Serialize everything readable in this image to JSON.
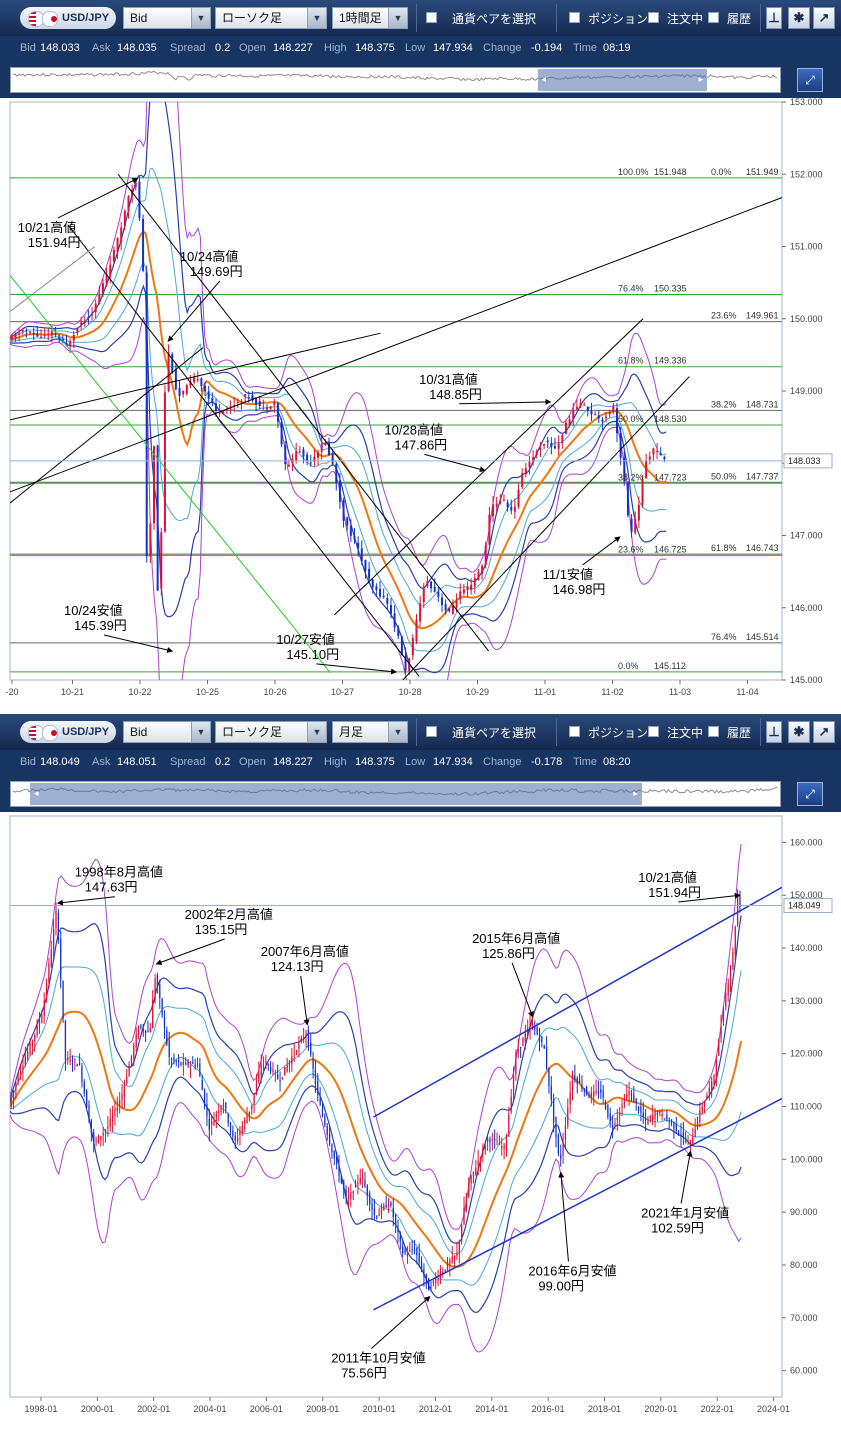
{
  "panels": [
    {
      "toolbar": {
        "pair": "USD/JPY",
        "price_type": "Bid",
        "chart_style": "ローソク足",
        "timeframe": "1時間足",
        "pair_select_label": "通貨ペアを選択",
        "positions_label": "ポジション",
        "orders_label": "注文中",
        "history_label": "履歴",
        "pin_icon": "pin-icon",
        "gear_icon": "gear-icon",
        "popout_icon": "popout-icon"
      },
      "quote": {
        "bid_label": "Bid",
        "bid": "148.033",
        "ask_label": "Ask",
        "ask": "148.035",
        "spread_label": "Spread",
        "spread": "0.2",
        "open_label": "Open",
        "open": "148.227",
        "high_label": "High",
        "high": "148.375",
        "low_label": "Low",
        "low": "147.934",
        "change_label": "Change",
        "change": "-0.194",
        "time_label": "Time",
        "time": "08:19"
      },
      "navigator": {
        "window_start": 0.685,
        "window_end": 0.905
      }
    },
    {
      "toolbar": {
        "pair": "USD/JPY",
        "price_type": "Bid",
        "chart_style": "ローソク足",
        "timeframe": "月足",
        "pair_select_label": "通貨ペアを選択",
        "positions_label": "ポジション",
        "orders_label": "注文中",
        "history_label": "履歴",
        "pin_icon": "pin-icon",
        "gear_icon": "gear-icon",
        "popout_icon": "popout-icon"
      },
      "quote": {
        "bid_label": "Bid",
        "bid": "148.049",
        "ask_label": "Ask",
        "ask": "148.051",
        "spread_label": "Spread",
        "spread": "0.2",
        "open_label": "Open",
        "open": "148.227",
        "high_label": "High",
        "high": "148.375",
        "low_label": "Low",
        "low": "147.934",
        "change_label": "Change",
        "change": "-0.178",
        "time_label": "Time",
        "time": "08:20"
      },
      "navigator": {
        "window_start": 0.025,
        "window_end": 0.82
      }
    }
  ],
  "chart_data": [
    {
      "type": "candlestick",
      "pair": "USD/JPY",
      "timeframe": "1時間足",
      "ylim": [
        145.0,
        153.0
      ],
      "y_ticks": [
        "145.000",
        "146.000",
        "147.000",
        "148.000",
        "149.000",
        "150.000",
        "151.000",
        "152.000",
        "153.000"
      ],
      "x_ticks": [
        "-20",
        "10-21",
        "10-22",
        "10-25",
        "10-26",
        "10-27",
        "10-28",
        "10-29",
        "11-01",
        "11-02",
        "11-03",
        "11-04"
      ],
      "current_price": "148.033",
      "series_path": [
        [
          0.0,
          149.7
        ],
        [
          0.02,
          149.85
        ],
        [
          0.04,
          149.75
        ],
        [
          0.06,
          149.8
        ],
        [
          0.075,
          149.6
        ],
        [
          0.09,
          149.9
        ],
        [
          0.11,
          150.1
        ],
        [
          0.13,
          150.7
        ],
        [
          0.145,
          151.2
        ],
        [
          0.155,
          151.7
        ],
        [
          0.165,
          151.9
        ],
        [
          0.17,
          151.4
        ],
        [
          0.175,
          150.6
        ],
        [
          0.18,
          146.2
        ],
        [
          0.19,
          148.5
        ],
        [
          0.195,
          145.39
        ],
        [
          0.2,
          147.9
        ],
        [
          0.205,
          149.69
        ],
        [
          0.21,
          149.4
        ],
        [
          0.22,
          148.9
        ],
        [
          0.235,
          149.1
        ],
        [
          0.245,
          149.2
        ],
        [
          0.255,
          149.0
        ],
        [
          0.27,
          148.7
        ],
        [
          0.29,
          148.8
        ],
        [
          0.31,
          148.95
        ],
        [
          0.33,
          148.75
        ],
        [
          0.345,
          148.85
        ],
        [
          0.36,
          147.9
        ],
        [
          0.375,
          148.2
        ],
        [
          0.39,
          148.0
        ],
        [
          0.41,
          148.3
        ],
        [
          0.42,
          148.0
        ],
        [
          0.435,
          147.2
        ],
        [
          0.45,
          146.9
        ],
        [
          0.47,
          146.3
        ],
        [
          0.49,
          146.1
        ],
        [
          0.505,
          145.6
        ],
        [
          0.515,
          145.1
        ],
        [
          0.525,
          145.6
        ],
        [
          0.54,
          146.4
        ],
        [
          0.555,
          146.2
        ],
        [
          0.57,
          145.9
        ],
        [
          0.585,
          146.2
        ],
        [
          0.6,
          146.3
        ],
        [
          0.615,
          146.6
        ],
        [
          0.625,
          147.4
        ],
        [
          0.64,
          147.5
        ],
        [
          0.655,
          147.3
        ],
        [
          0.665,
          147.86
        ],
        [
          0.68,
          148.1
        ],
        [
          0.695,
          148.3
        ],
        [
          0.71,
          148.2
        ],
        [
          0.725,
          148.6
        ],
        [
          0.74,
          148.85
        ],
        [
          0.755,
          148.7
        ],
        [
          0.77,
          148.6
        ],
        [
          0.785,
          148.8
        ],
        [
          0.79,
          148.3
        ],
        [
          0.8,
          147.6
        ],
        [
          0.805,
          146.98
        ],
        [
          0.815,
          147.3
        ],
        [
          0.825,
          148.0
        ],
        [
          0.835,
          148.2
        ],
        [
          0.845,
          148.1
        ],
        [
          0.85,
          148.033
        ]
      ],
      "lines": [
        {
          "color": "#000000",
          "width": 1,
          "from": [
            -0.05,
            147.4
          ],
          "to": [
            1.03,
            151.8
          ]
        },
        {
          "color": "#000000",
          "width": 1,
          "from": [
            0.0,
            148.6
          ],
          "to": [
            0.48,
            149.8
          ]
        },
        {
          "color": "#000000",
          "width": 1,
          "from": [
            0.14,
            152.0
          ],
          "to": [
            0.62,
            145.4
          ]
        },
        {
          "color": "#000000",
          "width": 1,
          "from": [
            0.075,
            151.3
          ],
          "to": [
            0.53,
            145.05
          ]
        },
        {
          "color": "#000000",
          "width": 1,
          "from": [
            0.0,
            147.45
          ],
          "to": [
            0.25,
            149.6
          ]
        },
        {
          "color": "#000000",
          "width": 1,
          "from": [
            0.42,
            145.9
          ],
          "to": [
            0.82,
            150.0
          ]
        },
        {
          "color": "#000000",
          "width": 1,
          "from": [
            0.5,
            144.9
          ],
          "to": [
            0.88,
            149.2
          ]
        },
        {
          "color": "#888888",
          "width": 1,
          "from": [
            0.0,
            150.1
          ],
          "to": [
            0.11,
            151.0
          ]
        },
        {
          "color": "#22cc22",
          "width": 1,
          "from": [
            0.0,
            150.6
          ],
          "to": [
            0.415,
            145.1
          ]
        }
      ],
      "fib_levels": [
        {
          "value": 151.949,
          "color": "#3ba33b",
          "ratio_left": "100.0%",
          "label_left": "151.948",
          "ratio_right": "0.0%",
          "label_right": "151.949"
        },
        {
          "value": 150.335,
          "color": "#3ba33b",
          "ratio_left": "76.4%",
          "label_left": "150.335"
        },
        {
          "value": 149.961,
          "color": "#666666",
          "ratio_right": "23.6%",
          "label_right": "149.961"
        },
        {
          "value": 149.336,
          "color": "#3ba33b",
          "ratio_left": "61.8%",
          "label_left": "149.336"
        },
        {
          "value": 148.731,
          "color": "#666666",
          "ratio_right": "38.2%",
          "label_right": "148.731"
        },
        {
          "value": 148.53,
          "color": "#3ba33b",
          "ratio_left": "50.0%",
          "label_left": "148.530"
        },
        {
          "value": 147.737,
          "color": "#666666",
          "ratio_right": "50.0%",
          "label_right": "147.737"
        },
        {
          "value": 147.723,
          "color": "#3ba33b",
          "ratio_left": "38.2%",
          "label_left": "147.723"
        },
        {
          "value": 146.743,
          "color": "#666666",
          "ratio_right": "61.8%",
          "label_right": "146.743"
        },
        {
          "value": 146.725,
          "color": "#3ba33b",
          "ratio_left": "23.6%",
          "label_left": "146.725"
        },
        {
          "value": 145.514,
          "color": "#666666",
          "ratio_right": "76.4%",
          "label_right": "145.514"
        },
        {
          "value": 145.112,
          "color": "#3ba33b",
          "ratio_left": "0.0%",
          "label_left": "145.112"
        }
      ],
      "annotations": [
        {
          "line1": "10/21高値",
          "line2": "151.94円",
          "x": 0.165,
          "y": 151.94,
          "tx": 0.01,
          "ty": 151.2,
          "anchor": "start"
        },
        {
          "line1": "10/24高値",
          "line2": "149.69円",
          "x": 0.205,
          "y": 149.69,
          "tx": 0.22,
          "ty": 150.8,
          "anchor": "start"
        },
        {
          "line1": "10/31高値",
          "line2": "148.85円",
          "x": 0.7,
          "y": 148.85,
          "tx": 0.53,
          "ty": 149.1,
          "anchor": "start"
        },
        {
          "line1": "10/28高値",
          "line2": "147.86円",
          "x": 0.615,
          "y": 147.9,
          "tx": 0.485,
          "ty": 148.4,
          "anchor": "start"
        },
        {
          "line1": "11/1安値",
          "line2": "146.98円",
          "x": 0.79,
          "y": 146.98,
          "tx": 0.69,
          "ty": 146.4,
          "anchor": "start"
        },
        {
          "line1": "10/24安値",
          "line2": "145.39円",
          "x": 0.21,
          "y": 145.4,
          "tx": 0.07,
          "ty": 145.9,
          "anchor": "start"
        },
        {
          "line1": "10/27安値",
          "line2": "145.10円",
          "x": 0.5,
          "y": 145.11,
          "tx": 0.345,
          "ty": 145.5,
          "anchor": "start"
        }
      ]
    },
    {
      "type": "candlestick",
      "pair": "USD/JPY",
      "timeframe": "月足",
      "ylim": [
        55.0,
        165.0
      ],
      "y_ticks": [
        "60.000",
        "70.000",
        "80.000",
        "90.000",
        "100.000",
        "110.000",
        "120.000",
        "130.000",
        "140.000",
        "150.000",
        "160.000"
      ],
      "x_ticks": [
        "1998-01",
        "2000-01",
        "2002-01",
        "2004-01",
        "2006-01",
        "2008-01",
        "2010-01",
        "2012-01",
        "2014-01",
        "2016-01",
        "2018-01",
        "2020-01",
        "2022-01",
        "2024-01"
      ],
      "x_range": [
        1996.9,
        2024.3
      ],
      "current_price": "148.049",
      "series_path": [
        [
          1996.9,
          110
        ],
        [
          1997.3,
          117
        ],
        [
          1997.7,
          122
        ],
        [
          1998.1,
          128
        ],
        [
          1998.6,
          147.63
        ],
        [
          1998.9,
          119
        ],
        [
          1999.4,
          118
        ],
        [
          1999.9,
          103
        ],
        [
          2000.4,
          106
        ],
        [
          2000.9,
          112
        ],
        [
          2001.5,
          125
        ],
        [
          2001.9,
          124
        ],
        [
          2002.1,
          135.15
        ],
        [
          2002.6,
          119
        ],
        [
          2003.0,
          118
        ],
        [
          2003.6,
          118
        ],
        [
          2004.0,
          106
        ],
        [
          2004.5,
          111
        ],
        [
          2004.9,
          103
        ],
        [
          2005.5,
          110
        ],
        [
          2005.9,
          119
        ],
        [
          2006.5,
          115
        ],
        [
          2006.9,
          119
        ],
        [
          2007.45,
          124.13
        ],
        [
          2007.9,
          111
        ],
        [
          2008.3,
          103
        ],
        [
          2008.9,
          92
        ],
        [
          2009.4,
          97
        ],
        [
          2009.9,
          89
        ],
        [
          2010.4,
          92
        ],
        [
          2010.9,
          82
        ],
        [
          2011.3,
          83
        ],
        [
          2011.8,
          75.56
        ],
        [
          2012.3,
          79
        ],
        [
          2012.8,
          82
        ],
        [
          2013.2,
          95
        ],
        [
          2013.5,
          99
        ],
        [
          2013.9,
          104
        ],
        [
          2014.5,
          102
        ],
        [
          2014.9,
          120
        ],
        [
          2015.45,
          125.86
        ],
        [
          2015.9,
          121
        ],
        [
          2016.45,
          99.0
        ],
        [
          2016.9,
          116
        ],
        [
          2017.5,
          112
        ],
        [
          2017.9,
          113
        ],
        [
          2018.3,
          106
        ],
        [
          2018.9,
          113
        ],
        [
          2019.5,
          107
        ],
        [
          2019.9,
          109
        ],
        [
          2020.4,
          107
        ],
        [
          2021.05,
          102.59
        ],
        [
          2021.5,
          110
        ],
        [
          2021.9,
          115
        ],
        [
          2022.3,
          130
        ],
        [
          2022.6,
          139
        ],
        [
          2022.8,
          151.94
        ],
        [
          2022.85,
          148.05
        ]
      ],
      "lines": [
        {
          "color": "#2233cc",
          "width": 1.5,
          "from": [
            2009.8,
            108
          ],
          "to": [
            2024.3,
            151.5
          ]
        },
        {
          "color": "#2233cc",
          "width": 1.5,
          "from": [
            2009.8,
            71.5
          ],
          "to": [
            2024.3,
            111.5
          ]
        }
      ],
      "annotations": [
        {
          "line1": "1998年8月高値",
          "line2": "147.63円",
          "x": 1998.6,
          "y": 148.5,
          "tx": 1999.2,
          "ty": 153.5,
          "anchor": "start"
        },
        {
          "line1": "2002年2月高値",
          "line2": "135.15円",
          "x": 2002.1,
          "y": 137,
          "tx": 2003.1,
          "ty": 145.5,
          "anchor": "start"
        },
        {
          "line1": "2007年6月高値",
          "line2": "124.13円",
          "x": 2007.45,
          "y": 125.5,
          "tx": 2005.8,
          "ty": 138.5,
          "anchor": "start"
        },
        {
          "line1": "2015年6月高値",
          "line2": "125.86円",
          "x": 2015.45,
          "y": 127,
          "tx": 2013.3,
          "ty": 141,
          "anchor": "start"
        },
        {
          "line1": "10/21高値",
          "line2": "151.94円",
          "x": 2022.8,
          "y": 150,
          "tx": 2019.2,
          "ty": 152.5,
          "anchor": "start"
        },
        {
          "line1": "2021年1月安値",
          "line2": "102.59円",
          "x": 2021.05,
          "y": 101.5,
          "tx": 2019.3,
          "ty": 89,
          "anchor": "start"
        },
        {
          "line1": "2016年6月安値",
          "line2": "99.00円",
          "x": 2016.45,
          "y": 97.5,
          "tx": 2015.3,
          "ty": 78,
          "anchor": "start"
        },
        {
          "line1": "2011年10月安値",
          "line2": "75.56円",
          "x": 2011.8,
          "y": 74,
          "tx": 2008.3,
          "ty": 61.5,
          "anchor": "start"
        }
      ]
    }
  ]
}
